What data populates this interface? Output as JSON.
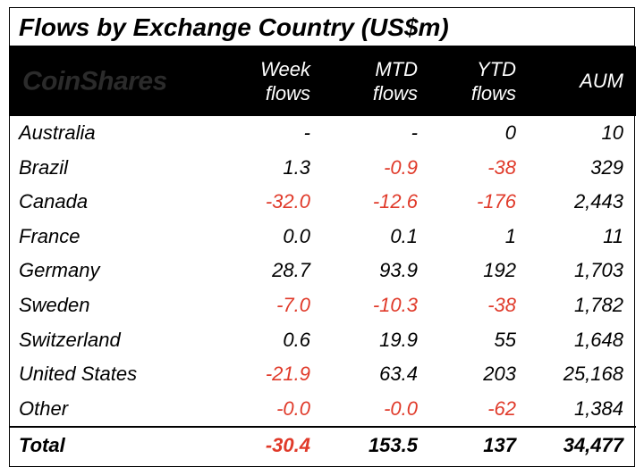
{
  "title": "Flows by Exchange Country (US$m)",
  "watermark": "CoinShares",
  "colors": {
    "negative": "#e03a2a",
    "positive": "#000000",
    "header_bg": "#000000",
    "header_fg": "#ffffff",
    "border": "#000000"
  },
  "columns": [
    {
      "id": "country",
      "top": "",
      "bottom": ""
    },
    {
      "id": "week",
      "top": "Week",
      "bottom": "flows"
    },
    {
      "id": "mtd",
      "top": "MTD",
      "bottom": "flows"
    },
    {
      "id": "ytd",
      "top": "YTD",
      "bottom": "flows"
    },
    {
      "id": "aum",
      "top": "",
      "bottom": "AUM"
    }
  ],
  "rows": [
    {
      "country": "Australia",
      "week": "-",
      "week_neg": false,
      "mtd": "-",
      "mtd_neg": false,
      "ytd": "0",
      "ytd_neg": false,
      "aum": "10"
    },
    {
      "country": "Brazil",
      "week": "1.3",
      "week_neg": false,
      "mtd": "-0.9",
      "mtd_neg": true,
      "ytd": "-38",
      "ytd_neg": true,
      "aum": "329"
    },
    {
      "country": "Canada",
      "week": "-32.0",
      "week_neg": true,
      "mtd": "-12.6",
      "mtd_neg": true,
      "ytd": "-176",
      "ytd_neg": true,
      "aum": "2,443"
    },
    {
      "country": "France",
      "week": "0.0",
      "week_neg": false,
      "mtd": "0.1",
      "mtd_neg": false,
      "ytd": "1",
      "ytd_neg": false,
      "aum": "11"
    },
    {
      "country": "Germany",
      "week": "28.7",
      "week_neg": false,
      "mtd": "93.9",
      "mtd_neg": false,
      "ytd": "192",
      "ytd_neg": false,
      "aum": "1,703"
    },
    {
      "country": "Sweden",
      "week": "-7.0",
      "week_neg": true,
      "mtd": "-10.3",
      "mtd_neg": true,
      "ytd": "-38",
      "ytd_neg": true,
      "aum": "1,782"
    },
    {
      "country": "Switzerland",
      "week": "0.6",
      "week_neg": false,
      "mtd": "19.9",
      "mtd_neg": false,
      "ytd": "55",
      "ytd_neg": false,
      "aum": "1,648"
    },
    {
      "country": "United States",
      "week": "-21.9",
      "week_neg": true,
      "mtd": "63.4",
      "mtd_neg": false,
      "ytd": "203",
      "ytd_neg": false,
      "aum": "25,168"
    },
    {
      "country": "Other",
      "week": "-0.0",
      "week_neg": true,
      "mtd": "-0.0",
      "mtd_neg": true,
      "ytd": "-62",
      "ytd_neg": true,
      "aum": "1,384"
    }
  ],
  "total": {
    "label": "Total",
    "week": "-30.4",
    "week_neg": true,
    "mtd": "153.5",
    "mtd_neg": false,
    "ytd": "137",
    "ytd_neg": false,
    "aum": "34,477"
  }
}
